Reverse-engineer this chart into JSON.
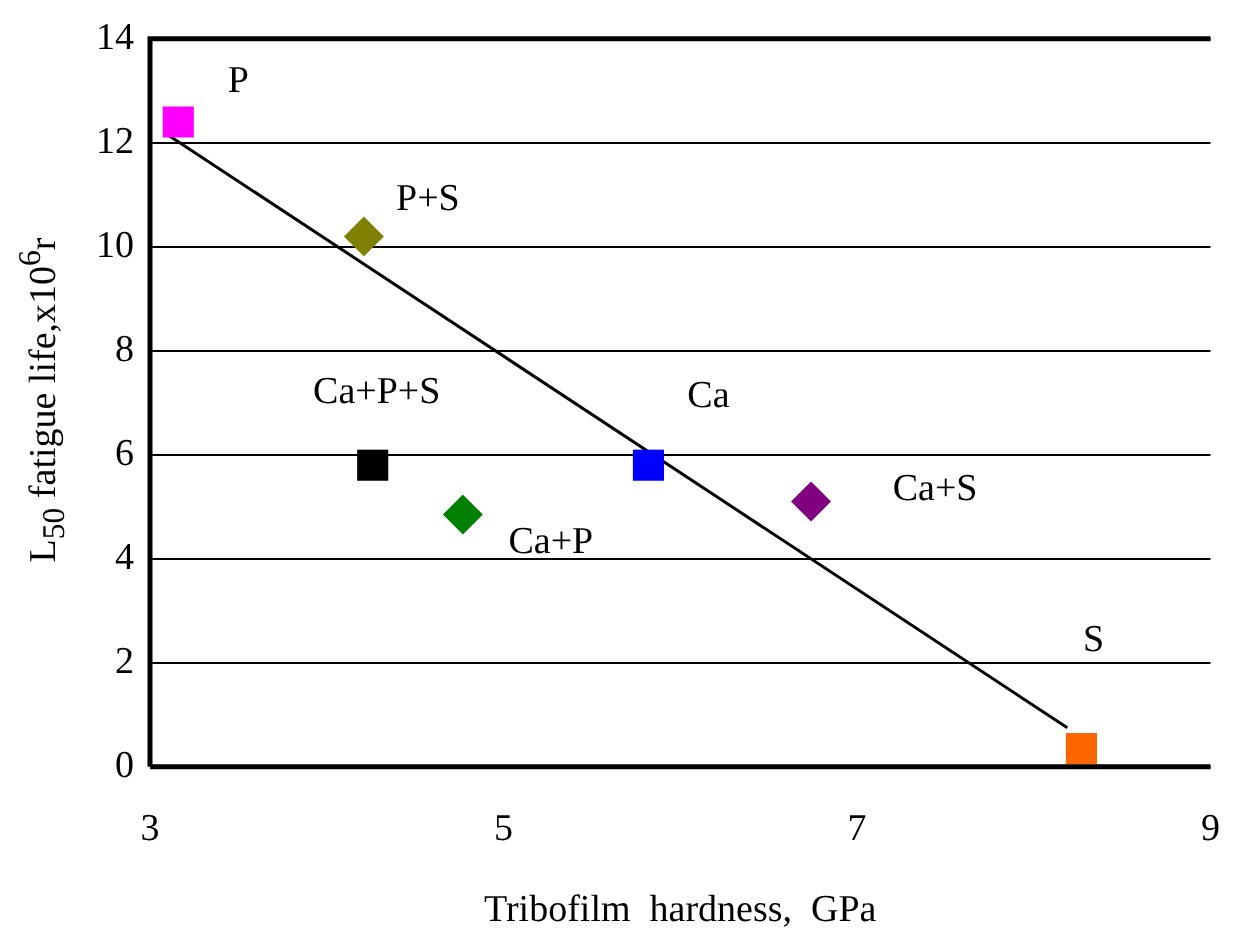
{
  "chart_data": {
    "type": "scatter",
    "xlabel": "Tribofilm  hardness,  GPa",
    "ylabel": "L$_{50}$ fatigue life,x10$^{6}$r",
    "xlim": [
      3,
      9
    ],
    "xticks": [
      3,
      5,
      7,
      9
    ],
    "ylim": [
      0,
      14
    ],
    "yticks": [
      0,
      2,
      4,
      6,
      8,
      10,
      12,
      14
    ],
    "grid": "y",
    "legend": false,
    "series": [
      {
        "name": "P",
        "color": "#ff00ff",
        "marker": "square",
        "x": [
          3.16
        ],
        "values": [
          12.4
        ]
      },
      {
        "name": "P+S",
        "color": "#808000",
        "marker": "diamond",
        "x": [
          4.21
        ],
        "values": [
          10.2
        ]
      },
      {
        "name": "Ca+P+S",
        "color": "#000000",
        "marker": "square",
        "x": [
          4.26
        ],
        "values": [
          5.8
        ]
      },
      {
        "name": "Ca+P",
        "color": "#008000",
        "marker": "diamond",
        "x": [
          4.77
        ],
        "values": [
          4.85
        ]
      },
      {
        "name": "Ca",
        "color": "#0000ff",
        "marker": "square",
        "x": [
          5.82
        ],
        "values": [
          5.8
        ]
      },
      {
        "name": "Ca+S",
        "color": "#800080",
        "marker": "diamond",
        "x": [
          6.74
        ],
        "values": [
          5.1
        ]
      },
      {
        "name": "S",
        "color": "#ff6600",
        "marker": "square",
        "x": [
          8.27
        ],
        "values": [
          0.35
        ]
      },
      {
        "type": "line",
        "color": "#000000",
        "marker": "none",
        "x": [
          3.08,
          8.19
        ],
        "values": [
          12.2,
          0.75
        ]
      }
    ]
  }
}
